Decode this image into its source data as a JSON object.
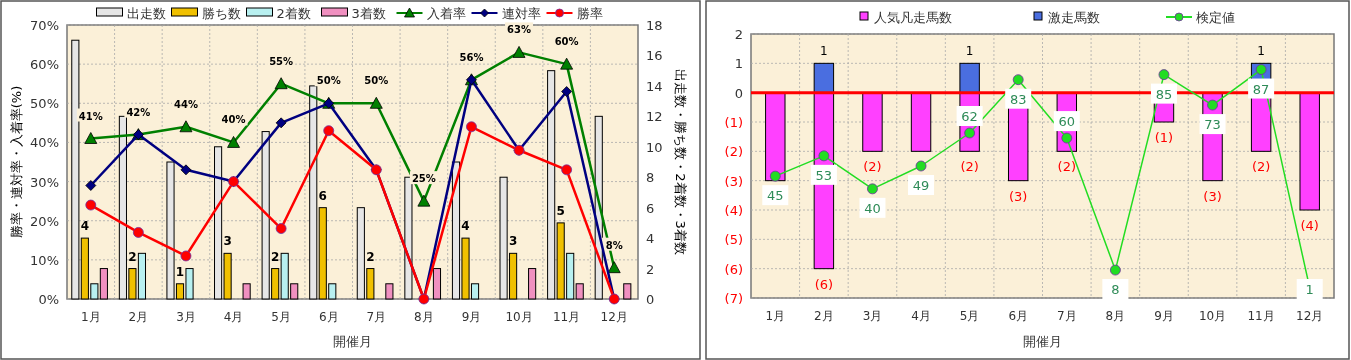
{
  "chart_data": [
    {
      "type": "bar",
      "categories": [
        "1月",
        "2月",
        "3月",
        "4月",
        "5月",
        "6月",
        "7月",
        "8月",
        "9月",
        "10月",
        "11月",
        "12月"
      ],
      "xlabel": "開催月",
      "ylabel": "勝率・連対率・入着率(%)",
      "y2label": "出走数・勝ち数・2着数・3着数",
      "ylim": [
        0,
        70
      ],
      "yticks": [
        {
          "value": 0,
          "label": "0%"
        },
        {
          "value": 10,
          "label": "10%"
        },
        {
          "value": 20,
          "label": "20%"
        },
        {
          "value": 30,
          "label": "30%"
        },
        {
          "value": 40,
          "label": "40%"
        },
        {
          "value": 50,
          "label": "50%"
        },
        {
          "value": 60,
          "label": "60%"
        },
        {
          "value": 70,
          "label": "70%"
        }
      ],
      "y2lim": [
        0,
        18
      ],
      "y2ticks": [
        0,
        2,
        4,
        6,
        8,
        10,
        12,
        14,
        16,
        18
      ],
      "grid": true,
      "legend": "top",
      "series": [
        {
          "name": "出走数",
          "axis": "y2",
          "color": "#e6e6e6",
          "values": [
            17,
            12,
            9,
            10,
            11,
            14,
            6,
            8,
            9,
            8,
            15,
            12
          ]
        },
        {
          "name": "勝ち数",
          "axis": "y2",
          "color": "#f0c000",
          "values": [
            4,
            2,
            1,
            3,
            2,
            6,
            2,
            0,
            4,
            3,
            5,
            0
          ],
          "value_labels": [
            "4",
            "2",
            "1",
            "3",
            "2",
            "6",
            "2",
            null,
            "4",
            "3",
            "5",
            null
          ]
        },
        {
          "name": "2着数",
          "axis": "y2",
          "color": "#b8f0f0",
          "values": [
            1,
            3,
            2,
            0,
            3,
            1,
            0,
            0,
            1,
            0,
            3,
            0
          ]
        },
        {
          "name": "3着数",
          "axis": "y2",
          "color": "#f090c0",
          "values": [
            2,
            0,
            0,
            1,
            1,
            0,
            1,
            2,
            0,
            2,
            1,
            1
          ]
        },
        {
          "name": "入着率",
          "type": "line",
          "color": "#008000",
          "marker": "triangle",
          "values": [
            41,
            42,
            44,
            40,
            55,
            50,
            50,
            25,
            56,
            63,
            60,
            8
          ],
          "value_labels": [
            "41%",
            "42%",
            "44%",
            "40%",
            "55%",
            "50%",
            "50%",
            "25%",
            "56%",
            "63%",
            "60%",
            "8%"
          ]
        },
        {
          "name": "連対率",
          "type": "line",
          "color": "#000080",
          "marker": "diamond",
          "values": [
            29,
            42,
            33,
            30,
            45,
            50,
            33,
            0,
            56,
            38,
            53,
            0
          ]
        },
        {
          "name": "勝率",
          "type": "line",
          "color": "#ff0000",
          "marker": "circle",
          "values": [
            24,
            17,
            11,
            30,
            18,
            43,
            33,
            0,
            44,
            38,
            33,
            0
          ]
        }
      ]
    },
    {
      "type": "bar",
      "stacked": true,
      "categories": [
        "1月",
        "2月",
        "3月",
        "4月",
        "5月",
        "6月",
        "7月",
        "8月",
        "9月",
        "10月",
        "11月",
        "12月"
      ],
      "xlabel": "開催月",
      "ylim": [
        -7,
        2
      ],
      "yticks": [
        2,
        1,
        0,
        {
          "value": -1,
          "label": "(1)"
        },
        {
          "value": -2,
          "label": "(2)"
        },
        {
          "value": -3,
          "label": "(3)"
        },
        {
          "value": -4,
          "label": "(4)"
        },
        {
          "value": -5,
          "label": "(5)"
        },
        {
          "value": -6,
          "label": "(6)"
        },
        {
          "value": -7,
          "label": "(7)"
        }
      ],
      "y2lim": [
        -3,
        101
      ],
      "grid": true,
      "legend": "top",
      "ref_lines": [
        {
          "axis": "y",
          "value": 0,
          "color": "#ff0000"
        }
      ],
      "series": [
        {
          "name": "人気凡走馬数",
          "color": "#ff40ff",
          "values": [
            -3,
            -6,
            -2,
            -2,
            -2,
            -3,
            -2,
            null,
            -1,
            -3,
            -2,
            -4
          ],
          "value_labels": [
            null,
            "(6)",
            "(2)",
            null,
            "(2)",
            "(3)",
            "(2)",
            null,
            "(1)",
            "(3)",
            "(2)",
            "(4)"
          ]
        },
        {
          "name": "激走馬数",
          "color": "#4a6ee0",
          "values": [
            null,
            1,
            null,
            null,
            1,
            null,
            null,
            null,
            null,
            null,
            1,
            null
          ],
          "value_labels": [
            null,
            "1",
            null,
            null,
            "1",
            null,
            null,
            null,
            null,
            null,
            "1",
            null
          ]
        },
        {
          "name": "検定値",
          "type": "line",
          "axis": "y2",
          "color": "#22dd22",
          "marker": "circle",
          "values": [
            45,
            53,
            40,
            49,
            62,
            83,
            60,
            8,
            85,
            73,
            87,
            1
          ],
          "value_labels": [
            "45",
            "53",
            "40",
            "49",
            "62",
            "83",
            "60",
            "8",
            "85",
            "73",
            "87",
            "1"
          ]
        }
      ]
    }
  ]
}
